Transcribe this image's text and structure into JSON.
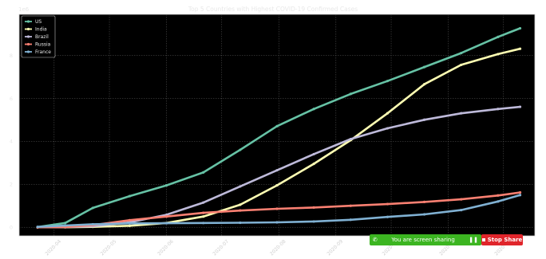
{
  "chart_data": {
    "type": "line",
    "title": "Top 5 Countries with Highest COVID-19 Confirmed Cases",
    "xlabel": "",
    "ylabel": "",
    "y_offset_label": "1e6",
    "x_tick_labels": [
      "2020-04",
      "2020-05",
      "2020-06",
      "2020-07",
      "2020-08",
      "2020-09",
      "2020-10",
      "2020-11",
      "2020-12"
    ],
    "x_ticks": [
      9,
      39,
      70,
      100,
      131,
      162,
      192,
      223,
      253
    ],
    "xlim": [
      -10,
      270
    ],
    "ylim": [
      -0.4,
      9.9
    ],
    "y_ticks": [
      0,
      2,
      4,
      6,
      8
    ],
    "y_tick_labels": [
      "0",
      "2",
      "4",
      "6",
      "8"
    ],
    "grid": true,
    "legend_position": "top-left",
    "x": [
      0,
      15,
      30,
      50,
      70,
      90,
      110,
      130,
      150,
      170,
      190,
      210,
      230,
      250,
      262
    ],
    "series": [
      {
        "name": "US",
        "color": "#66c2a5",
        "values": [
          0.01,
          0.2,
          0.9,
          1.45,
          1.95,
          2.55,
          3.6,
          4.7,
          5.5,
          6.2,
          6.8,
          7.45,
          8.1,
          8.85,
          9.25
        ]
      },
      {
        "name": "India",
        "color": "#ffffb3",
        "values": [
          0.0,
          0.0,
          0.02,
          0.07,
          0.2,
          0.5,
          1.05,
          1.95,
          2.95,
          4.05,
          5.3,
          6.65,
          7.55,
          8.05,
          8.3
        ]
      },
      {
        "name": "Brazil",
        "color": "#bebada",
        "values": [
          0.0,
          0.01,
          0.05,
          0.23,
          0.58,
          1.15,
          1.9,
          2.65,
          3.4,
          4.1,
          4.6,
          5.0,
          5.3,
          5.5,
          5.6
        ]
      },
      {
        "name": "Russia",
        "color": "#fb8072",
        "values": [
          0.0,
          0.01,
          0.1,
          0.33,
          0.5,
          0.67,
          0.78,
          0.86,
          0.92,
          1.0,
          1.08,
          1.18,
          1.3,
          1.48,
          1.62
        ]
      },
      {
        "name": "France",
        "color": "#80b1d3",
        "values": [
          0.02,
          0.08,
          0.14,
          0.18,
          0.19,
          0.2,
          0.21,
          0.23,
          0.27,
          0.35,
          0.48,
          0.6,
          0.8,
          1.2,
          1.5
        ]
      }
    ]
  },
  "share_bar": {
    "status_text": "You are screen sharing",
    "stop_label": "Stop Share",
    "phone_icon": "phone-icon",
    "pause_icon": "pause-icon",
    "bar_color": "#3cb521",
    "stop_color": "#e0252b"
  }
}
